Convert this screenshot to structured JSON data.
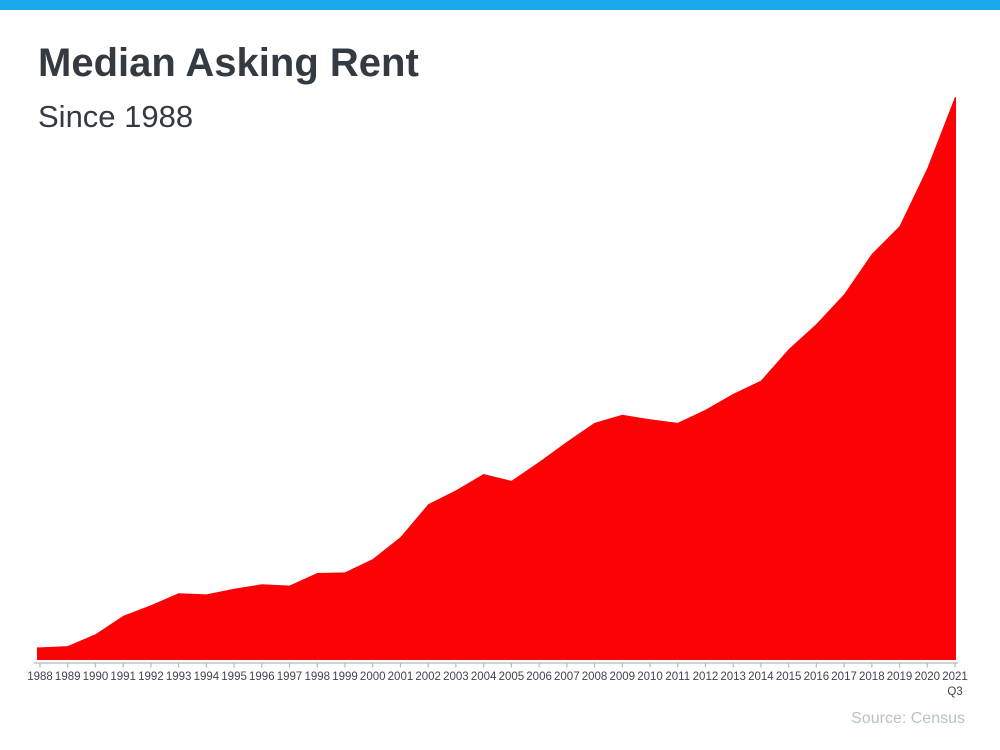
{
  "page": {
    "accent_bar_color": "#18aaec",
    "background_color": "#ffffff"
  },
  "header": {
    "title": "Median Asking Rent",
    "subtitle": "Since 1988"
  },
  "chart_data": {
    "type": "area",
    "title": "Median Asking Rent",
    "subtitle": "Since 1988",
    "categories": [
      "1988",
      "1989",
      "1990",
      "1991",
      "1992",
      "1993",
      "1994",
      "1995",
      "1996",
      "1997",
      "1998",
      "1999",
      "2000",
      "2001",
      "2002",
      "2003",
      "2004",
      "2005",
      "2006",
      "2007",
      "2008",
      "2009",
      "2010",
      "2011",
      "2012",
      "2013",
      "2014",
      "2015",
      "2016",
      "2017",
      "2018",
      "2019",
      "2020",
      "2021"
    ],
    "last_category_sub_label": "Q3",
    "values": [
      330,
      332,
      351,
      380,
      397,
      416,
      414,
      423,
      430,
      428,
      448,
      449,
      470,
      505,
      557,
      579,
      605,
      594,
      624,
      656,
      686,
      699,
      692,
      686,
      707,
      732,
      753,
      803,
      843,
      890,
      954,
      998,
      1090,
      1203
    ],
    "xlabel": "",
    "ylabel": "",
    "ylim": [
      310,
      1215
    ],
    "grid": false,
    "legend": false,
    "y_axis_visible": false,
    "area_color": "#fc0204",
    "axis_line_color": "#b3b9bd",
    "tick_color": "#b3b9bd",
    "tick_label_color": "#3f4450"
  },
  "footer": {
    "source": "Source: Census"
  }
}
